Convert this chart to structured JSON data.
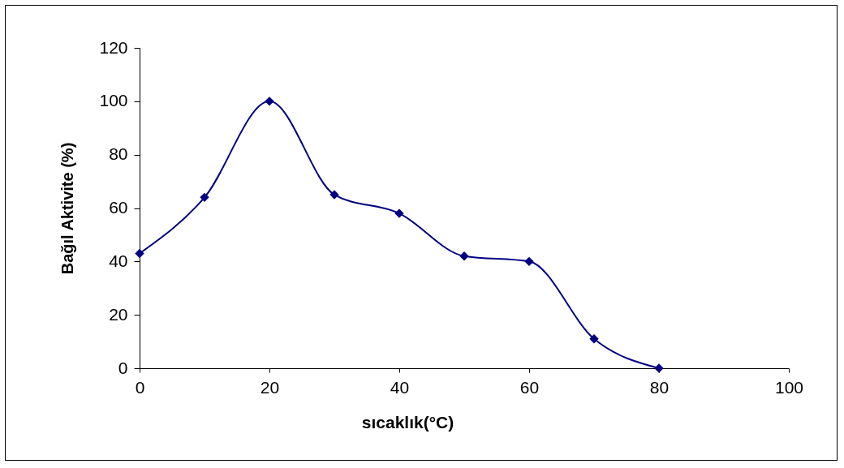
{
  "chart_data": {
    "type": "line",
    "xlabel": "sıcaklık(°C)",
    "ylabel": "Bağıl Aktivite (%)",
    "x": [
      0,
      10,
      20,
      30,
      40,
      50,
      60,
      70,
      80
    ],
    "series": [
      {
        "color": "#000080",
        "values": [
          43,
          64,
          100,
          65,
          58,
          42,
          40,
          11,
          0
        ]
      }
    ],
    "xlim": [
      0,
      100
    ],
    "xticks": [
      0,
      20,
      40,
      60,
      80,
      100
    ],
    "ylim": [
      0,
      120
    ],
    "yticks": [
      0,
      20,
      40,
      60,
      80,
      100,
      120
    ],
    "grid": false,
    "marker": "diamond",
    "line_style": "solid"
  }
}
